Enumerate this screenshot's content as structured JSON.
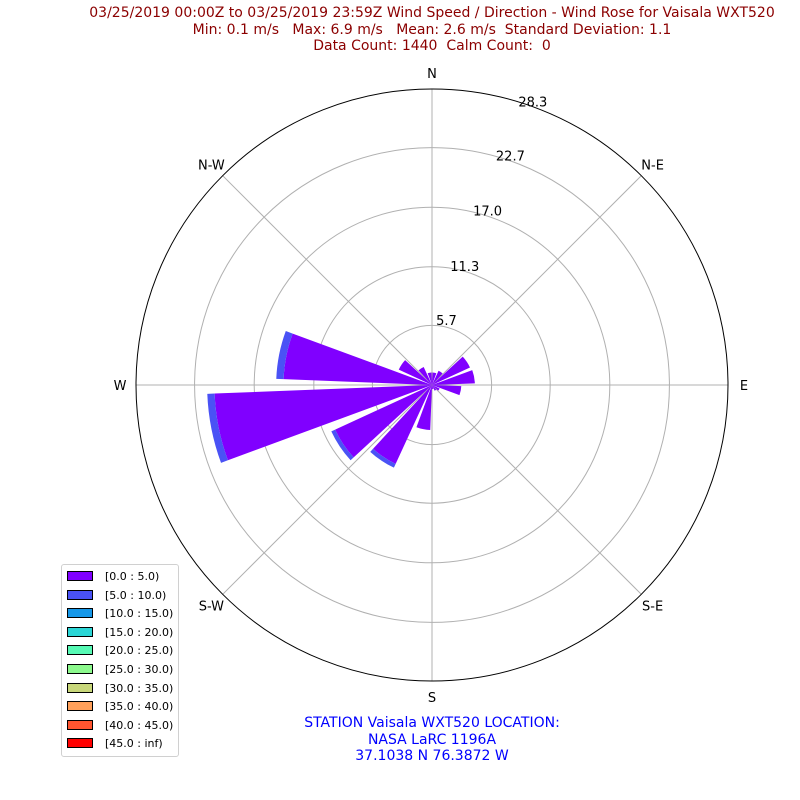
{
  "chart_data": {
    "type": "windrose",
    "title": [
      "03/25/2019 00:00Z to 03/25/2019 23:59Z Wind Speed / Direction - Wind Rose for Vaisala WXT520",
      "Min: 0.1 m/s   Max: 6.9 m/s   Mean: 2.6 m/s  Standard Deviation: 1.1",
      "Data Count: 1440  Calm Count:  0"
    ],
    "direction_labels": [
      {
        "label": "N",
        "deg": 0
      },
      {
        "label": "N-E",
        "deg": 45
      },
      {
        "label": "E",
        "deg": 90
      },
      {
        "label": "S-E",
        "deg": 135
      },
      {
        "label": "S",
        "deg": 180
      },
      {
        "label": "S-W",
        "deg": 225
      },
      {
        "label": "W",
        "deg": 270
      },
      {
        "label": "N-W",
        "deg": 315
      }
    ],
    "radial_ticks": [
      "5.7",
      "11.3",
      "17.0",
      "22.7",
      "28.3"
    ],
    "rmax": 28.3,
    "legend": [
      {
        "label": "[0.0 : 5.0)",
        "color": "#8000ff"
      },
      {
        "label": "[5.0 : 10.0)",
        "color": "#4a52f5"
      },
      {
        "label": "[10.0 : 15.0)",
        "color": "#1597e8"
      },
      {
        "label": "[15.0 : 20.0)",
        "color": "#2ad6d6"
      },
      {
        "label": "[20.0 : 25.0)",
        "color": "#56f9b4"
      },
      {
        "label": "[25.0 : 30.0)",
        "color": "#8cf98d"
      },
      {
        "label": "[30.0 : 35.0)",
        "color": "#c8d77a"
      },
      {
        "label": "[35.0 : 40.0)",
        "color": "#ffa05a"
      },
      {
        "label": "[40.0 : 45.0)",
        "color": "#ff5530"
      },
      {
        "label": "[45.0 : inf)",
        "color": "#ff0000"
      }
    ],
    "sectors": [
      {
        "dir": 11.25,
        "values": [
          1.2
        ]
      },
      {
        "dir": 33.75,
        "values": [
          1.5
        ]
      },
      {
        "dir": 56.25,
        "values": [
          4.0
        ]
      },
      {
        "dir": 78.75,
        "values": [
          4.1
        ]
      },
      {
        "dir": 101.25,
        "values": [
          2.8
        ]
      },
      {
        "dir": 123.75,
        "values": [
          0.8
        ]
      },
      {
        "dir": 146.25,
        "values": [
          0.6
        ]
      },
      {
        "dir": 168.75,
        "values": [
          0.4
        ]
      },
      {
        "dir": 191.25,
        "values": [
          4.3
        ]
      },
      {
        "dir": 213.75,
        "values": [
          8.3,
          0.4
        ]
      },
      {
        "dir": 236.25,
        "values": [
          10.2,
          0.4
        ]
      },
      {
        "dir": 258.75,
        "values": [
          20.8,
          0.7
        ]
      },
      {
        "dir": 281.25,
        "values": [
          14.2,
          0.7
        ]
      },
      {
        "dir": 303.75,
        "values": [
          3.5
        ]
      },
      {
        "dir": 326.25,
        "values": [
          1.9
        ]
      },
      {
        "dir": 348.75,
        "values": [
          1.2
        ]
      }
    ]
  },
  "station": [
    "STATION Vaisala WXT520 LOCATION:",
    "NASA LaRC 1196A",
    "37.1038 N 76.3872 W"
  ]
}
